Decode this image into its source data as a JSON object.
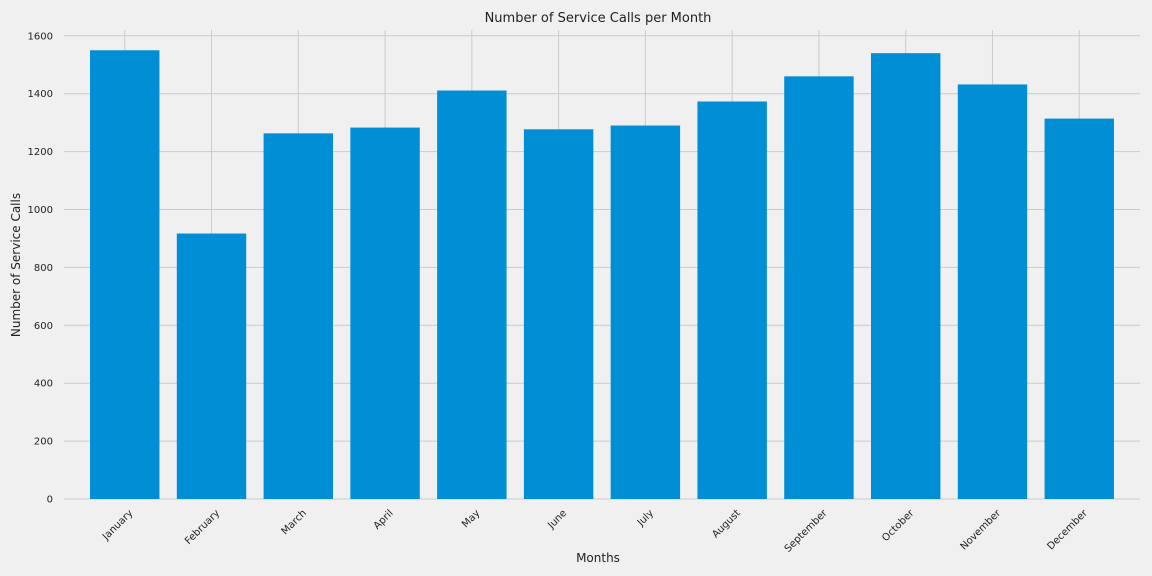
{
  "chart_data": {
    "type": "bar",
    "title": "Number of Service Calls per Month",
    "xlabel": "Months",
    "ylabel": "Number of Service Calls",
    "categories": [
      "January",
      "February",
      "March",
      "April",
      "May",
      "June",
      "July",
      "August",
      "September",
      "October",
      "November",
      "December"
    ],
    "values": [
      1550,
      917,
      1263,
      1283,
      1411,
      1277,
      1290,
      1373,
      1460,
      1540,
      1432,
      1314
    ],
    "ylim": [
      0,
      1620
    ],
    "yticks": [
      0,
      200,
      400,
      600,
      800,
      1000,
      1200,
      1400,
      1600
    ],
    "grid": true,
    "bar_color": "#008fd5",
    "background_color": "#f0f0f0",
    "grid_color": "#cbcbcb"
  }
}
